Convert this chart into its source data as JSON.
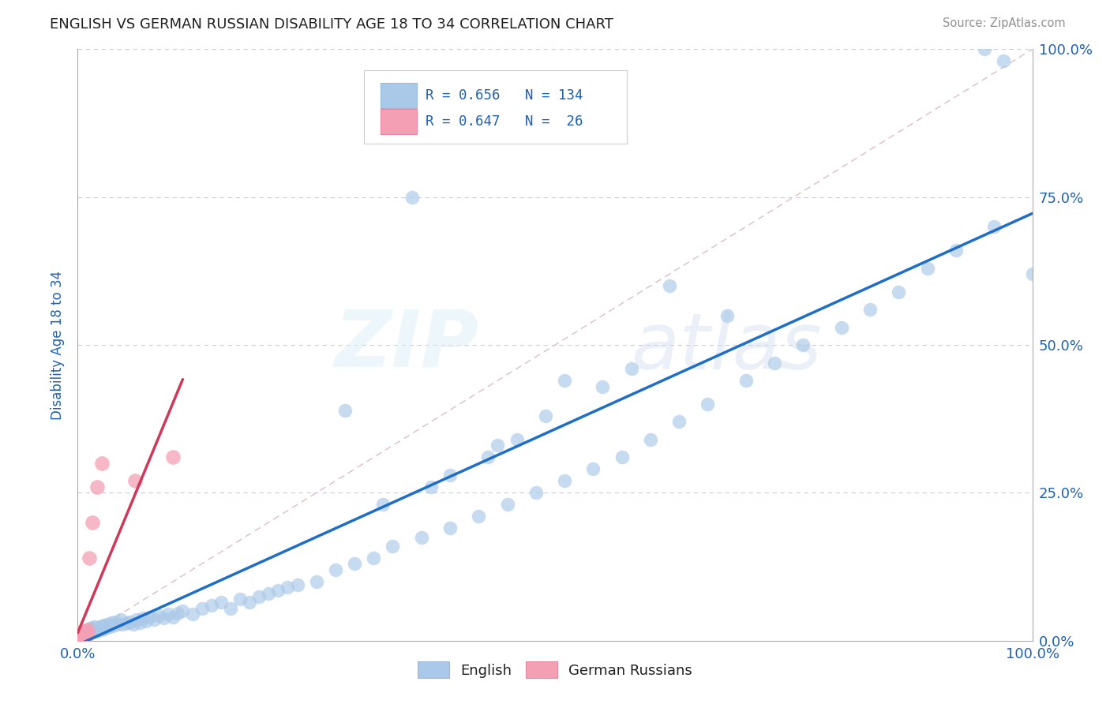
{
  "title": "ENGLISH VS GERMAN RUSSIAN DISABILITY AGE 18 TO 34 CORRELATION CHART",
  "source": "Source: ZipAtlas.com",
  "ylabel": "Disability Age 18 to 34",
  "xlim": [
    0,
    1
  ],
  "ylim": [
    0,
    1
  ],
  "xtick_labels": [
    "0.0%",
    "100.0%"
  ],
  "ytick_labels": [
    "0.0%",
    "25.0%",
    "50.0%",
    "75.0%",
    "100.0%"
  ],
  "ytick_positions": [
    0.0,
    0.25,
    0.5,
    0.75,
    1.0
  ],
  "english_R": 0.656,
  "english_N": 134,
  "german_russian_R": 0.647,
  "german_russian_N": 26,
  "english_color": "#aac8e8",
  "german_russian_color": "#f4a0b4",
  "english_line_color": "#1e6ec8",
  "german_russian_line_color": "#d03858",
  "diagonal_color": "#d8b8bc",
  "grid_color": "#c8ccd8",
  "title_color": "#202020",
  "axis_label_color": "#2060b0",
  "source_color": "#909090",
  "english_x": [
    0.001,
    0.001,
    0.001,
    0.002,
    0.002,
    0.002,
    0.003,
    0.003,
    0.003,
    0.003,
    0.004,
    0.004,
    0.004,
    0.004,
    0.005,
    0.005,
    0.005,
    0.005,
    0.006,
    0.006,
    0.006,
    0.007,
    0.007,
    0.007,
    0.008,
    0.008,
    0.008,
    0.009,
    0.009,
    0.009,
    0.01,
    0.01,
    0.011,
    0.011,
    0.012,
    0.012,
    0.013,
    0.013,
    0.014,
    0.014,
    0.015,
    0.015,
    0.016,
    0.016,
    0.017,
    0.018,
    0.019,
    0.02,
    0.021,
    0.022,
    0.023,
    0.024,
    0.025,
    0.026,
    0.027,
    0.028,
    0.03,
    0.031,
    0.033,
    0.035,
    0.037,
    0.039,
    0.042,
    0.045,
    0.048,
    0.052,
    0.055,
    0.058,
    0.062,
    0.065,
    0.068,
    0.072,
    0.075,
    0.08,
    0.085,
    0.09,
    0.095,
    0.1,
    0.105,
    0.11,
    0.12,
    0.13,
    0.14,
    0.15,
    0.16,
    0.17,
    0.18,
    0.19,
    0.2,
    0.21,
    0.22,
    0.23,
    0.25,
    0.27,
    0.29,
    0.31,
    0.33,
    0.36,
    0.39,
    0.42,
    0.45,
    0.48,
    0.51,
    0.54,
    0.57,
    0.6,
    0.63,
    0.66,
    0.7,
    0.73,
    0.76,
    0.8,
    0.83,
    0.86,
    0.89,
    0.92,
    0.96,
    1.0,
    0.95,
    0.97,
    0.46,
    0.39,
    0.32,
    0.28,
    0.55,
    0.62,
    0.68,
    0.58,
    0.43,
    0.37,
    0.49,
    0.44,
    0.51,
    0.35
  ],
  "english_y": [
    0.005,
    0.008,
    0.003,
    0.006,
    0.01,
    0.004,
    0.007,
    0.012,
    0.005,
    0.009,
    0.008,
    0.013,
    0.006,
    0.011,
    0.009,
    0.014,
    0.007,
    0.012,
    0.01,
    0.015,
    0.008,
    0.013,
    0.011,
    0.016,
    0.009,
    0.014,
    0.012,
    0.01,
    0.015,
    0.013,
    0.012,
    0.017,
    0.014,
    0.019,
    0.013,
    0.018,
    0.015,
    0.02,
    0.016,
    0.021,
    0.017,
    0.022,
    0.018,
    0.014,
    0.019,
    0.024,
    0.016,
    0.021,
    0.017,
    0.022,
    0.018,
    0.023,
    0.019,
    0.025,
    0.02,
    0.026,
    0.022,
    0.028,
    0.024,
    0.03,
    0.025,
    0.032,
    0.027,
    0.035,
    0.028,
    0.03,
    0.032,
    0.028,
    0.035,
    0.03,
    0.038,
    0.033,
    0.04,
    0.035,
    0.042,
    0.038,
    0.045,
    0.04,
    0.047,
    0.05,
    0.045,
    0.055,
    0.06,
    0.065,
    0.055,
    0.07,
    0.065,
    0.075,
    0.08,
    0.085,
    0.09,
    0.095,
    0.1,
    0.12,
    0.13,
    0.14,
    0.16,
    0.175,
    0.19,
    0.21,
    0.23,
    0.25,
    0.27,
    0.29,
    0.31,
    0.34,
    0.37,
    0.4,
    0.44,
    0.47,
    0.5,
    0.53,
    0.56,
    0.59,
    0.63,
    0.66,
    0.7,
    0.62,
    1.0,
    0.98,
    0.34,
    0.28,
    0.23,
    0.39,
    0.43,
    0.6,
    0.55,
    0.46,
    0.31,
    0.26,
    0.38,
    0.33,
    0.44,
    0.75
  ],
  "german_russian_x": [
    0.001,
    0.002,
    0.002,
    0.003,
    0.003,
    0.003,
    0.004,
    0.004,
    0.005,
    0.005,
    0.005,
    0.006,
    0.006,
    0.007,
    0.007,
    0.008,
    0.008,
    0.009,
    0.01,
    0.01,
    0.012,
    0.015,
    0.02,
    0.025,
    0.06,
    0.1
  ],
  "german_russian_y": [
    0.003,
    0.005,
    0.008,
    0.004,
    0.007,
    0.012,
    0.006,
    0.01,
    0.005,
    0.009,
    0.015,
    0.008,
    0.013,
    0.007,
    0.011,
    0.009,
    0.016,
    0.012,
    0.01,
    0.018,
    0.14,
    0.2,
    0.26,
    0.3,
    0.27,
    0.31
  ]
}
